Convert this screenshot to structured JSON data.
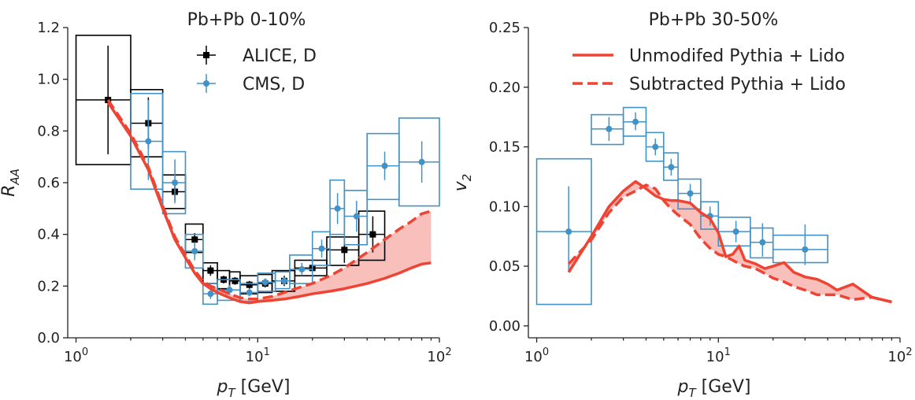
{
  "chart_data": [
    {
      "type": "scatter",
      "title": "Pb+Pb 0-10%",
      "ylabel_main": "R",
      "ylabel_sub": "AA",
      "xlabel_main": "p",
      "xlabel_sub": "T",
      "xlabel_unit": " [GeV]",
      "xscale": "log",
      "xlim": [
        0.9,
        100
      ],
      "ylim": [
        0,
        1.2
      ],
      "yticks": [
        0.0,
        0.2,
        0.4,
        0.6,
        0.8,
        1.0,
        1.2
      ],
      "ytick_labels": [
        "0.0",
        "0.2",
        "0.4",
        "0.6",
        "0.8",
        "1.0",
        "1.2"
      ],
      "xticks": [
        1,
        10,
        100
      ],
      "xtick_base": "10",
      "xtick_exps": [
        "0",
        "1",
        "2"
      ],
      "legend_position": "top-center",
      "series": [
        {
          "name": "ALICE, D",
          "color": "#000000",
          "marker": "square",
          "points": [
            {
              "x": 1.5,
              "y": 0.92,
              "xlo": 1,
              "xhi": 2,
              "ylo": 0.71,
              "yhi": 1.13,
              "blo": 0.67,
              "bhi": 1.17
            },
            {
              "x": 2.5,
              "y": 0.83,
              "xlo": 2,
              "xhi": 3,
              "ylo": 0.73,
              "yhi": 0.93,
              "blo": 0.7,
              "bhi": 0.96
            },
            {
              "x": 3.5,
              "y": 0.565,
              "xlo": 3,
              "xhi": 4,
              "ylo": 0.53,
              "yhi": 0.6,
              "blo": 0.5,
              "bhi": 0.63
            },
            {
              "x": 4.5,
              "y": 0.38,
              "xlo": 4,
              "xhi": 5,
              "ylo": 0.355,
              "yhi": 0.405,
              "blo": 0.33,
              "bhi": 0.44
            },
            {
              "x": 5.5,
              "y": 0.26,
              "xlo": 5,
              "xhi": 6,
              "ylo": 0.24,
              "yhi": 0.28,
              "blo": 0.21,
              "bhi": 0.29
            },
            {
              "x": 6.5,
              "y": 0.225,
              "xlo": 6,
              "xhi": 7,
              "ylo": 0.21,
              "yhi": 0.24,
              "blo": 0.19,
              "bhi": 0.26
            },
            {
              "x": 7.5,
              "y": 0.22,
              "xlo": 7,
              "xhi": 8,
              "ylo": 0.205,
              "yhi": 0.235,
              "blo": 0.185,
              "bhi": 0.255
            },
            {
              "x": 9,
              "y": 0.205,
              "xlo": 8,
              "xhi": 10,
              "ylo": 0.19,
              "yhi": 0.22,
              "blo": 0.17,
              "bhi": 0.24
            },
            {
              "x": 11,
              "y": 0.21,
              "xlo": 10,
              "xhi": 12,
              "ylo": 0.195,
              "yhi": 0.225,
              "blo": 0.175,
              "bhi": 0.245
            },
            {
              "x": 14,
              "y": 0.22,
              "xlo": 12,
              "xhi": 16,
              "ylo": 0.2,
              "yhi": 0.24,
              "blo": 0.18,
              "bhi": 0.26
            },
            {
              "x": 20,
              "y": 0.27,
              "xlo": 16,
              "xhi": 24,
              "ylo": 0.24,
              "yhi": 0.3,
              "blo": 0.24,
              "bhi": 0.3
            },
            {
              "x": 30,
              "y": 0.34,
              "xlo": 24,
              "xhi": 36,
              "ylo": 0.29,
              "yhi": 0.39,
              "blo": 0.28,
              "bhi": 0.39
            },
            {
              "x": 43,
              "y": 0.4,
              "xlo": 36,
              "xhi": 50,
              "ylo": 0.33,
              "yhi": 0.47,
              "blo": 0.3,
              "bhi": 0.49
            }
          ]
        },
        {
          "name": "CMS, D",
          "color": "#4292c6",
          "marker": "circle",
          "points": [
            {
              "x": 2.5,
              "y": 0.76,
              "xlo": 2,
              "xhi": 3,
              "ylo": 0.61,
              "yhi": 0.92,
              "blo": 0.575,
              "bhi": 0.945
            },
            {
              "x": 3.5,
              "y": 0.6,
              "xlo": 3,
              "xhi": 4,
              "ylo": 0.52,
              "yhi": 0.69,
              "blo": 0.48,
              "bhi": 0.72
            },
            {
              "x": 4.5,
              "y": 0.335,
              "xlo": 4,
              "xhi": 5,
              "ylo": 0.3,
              "yhi": 0.37,
              "blo": 0.27,
              "bhi": 0.4
            },
            {
              "x": 5.5,
              "y": 0.17,
              "xlo": 5,
              "xhi": 6,
              "ylo": 0.15,
              "yhi": 0.19,
              "blo": 0.13,
              "bhi": 0.21
            },
            {
              "x": 7,
              "y": 0.185,
              "xlo": 6,
              "xhi": 8,
              "ylo": 0.165,
              "yhi": 0.205,
              "blo": 0.145,
              "bhi": 0.225
            },
            {
              "x": 9,
              "y": 0.175,
              "xlo": 8,
              "xhi": 10,
              "ylo": 0.16,
              "yhi": 0.19,
              "blo": 0.14,
              "bhi": 0.21
            },
            {
              "x": 11,
              "y": 0.215,
              "xlo": 10,
              "xhi": 12.5,
              "ylo": 0.2,
              "yhi": 0.23,
              "blo": 0.18,
              "bhi": 0.25
            },
            {
              "x": 14,
              "y": 0.22,
              "xlo": 12.5,
              "xhi": 15,
              "ylo": 0.205,
              "yhi": 0.235,
              "blo": 0.19,
              "bhi": 0.255
            },
            {
              "x": 17.5,
              "y": 0.265,
              "xlo": 15,
              "xhi": 20,
              "ylo": 0.24,
              "yhi": 0.29,
              "blo": 0.21,
              "bhi": 0.32
            },
            {
              "x": 22.5,
              "y": 0.345,
              "xlo": 20,
              "xhi": 25,
              "ylo": 0.31,
              "yhi": 0.38,
              "blo": 0.28,
              "bhi": 0.41
            },
            {
              "x": 27.5,
              "y": 0.5,
              "xlo": 25,
              "xhi": 30,
              "ylo": 0.44,
              "yhi": 0.56,
              "blo": 0.4,
              "bhi": 0.61
            },
            {
              "x": 35,
              "y": 0.47,
              "xlo": 30,
              "xhi": 40,
              "ylo": 0.41,
              "yhi": 0.53,
              "blo": 0.36,
              "bhi": 0.57
            },
            {
              "x": 50,
              "y": 0.665,
              "xlo": 40,
              "xhi": 60,
              "ylo": 0.61,
              "yhi": 0.72,
              "blo": 0.535,
              "bhi": 0.79
            },
            {
              "x": 80,
              "y": 0.68,
              "xlo": 60,
              "xhi": 100,
              "ylo": 0.6,
              "yhi": 0.76,
              "blo": 0.51,
              "bhi": 0.85
            }
          ]
        }
      ],
      "model": {
        "color": "#ee4433",
        "band_color": "#f9bfbb",
        "unmodified": {
          "x": [
            1.5,
            2,
            2.5,
            3,
            3.5,
            4,
            4.5,
            5,
            5.5,
            6,
            7,
            8,
            9,
            10,
            12,
            14,
            17,
            20,
            25,
            30,
            40,
            50,
            60,
            70,
            80,
            90
          ],
          "y": [
            0.91,
            0.78,
            0.65,
            0.5,
            0.38,
            0.31,
            0.25,
            0.21,
            0.19,
            0.175,
            0.155,
            0.14,
            0.135,
            0.14,
            0.145,
            0.15,
            0.16,
            0.17,
            0.18,
            0.19,
            0.21,
            0.23,
            0.25,
            0.27,
            0.285,
            0.29
          ]
        },
        "subtracted": {
          "x": [
            1.5,
            2,
            2.5,
            3,
            3.5,
            4,
            4.5,
            5,
            5.5,
            6,
            7,
            8,
            9,
            10,
            12,
            14,
            17,
            20,
            25,
            30,
            40,
            50,
            60,
            70,
            80,
            90
          ],
          "y": [
            0.92,
            0.79,
            0.66,
            0.51,
            0.39,
            0.32,
            0.26,
            0.22,
            0.2,
            0.19,
            0.17,
            0.155,
            0.15,
            0.15,
            0.16,
            0.175,
            0.195,
            0.21,
            0.24,
            0.27,
            0.33,
            0.38,
            0.42,
            0.45,
            0.48,
            0.49
          ]
        }
      }
    },
    {
      "type": "scatter",
      "title": "Pb+Pb 30-50%",
      "ylabel_main": "v",
      "ylabel_sub": "2",
      "xlabel_main": "p",
      "xlabel_sub": "T",
      "xlabel_unit": " [GeV]",
      "xscale": "log",
      "xlim": [
        0.9,
        100
      ],
      "ylim": [
        -0.01,
        0.25
      ],
      "yticks": [
        0.0,
        0.05,
        0.1,
        0.15,
        0.2,
        0.25
      ],
      "ytick_labels": [
        "0.00",
        "0.05",
        "0.10",
        "0.15",
        "0.20",
        "0.25"
      ],
      "xticks": [
        1,
        10,
        100
      ],
      "xtick_base": "10",
      "xtick_exps": [
        "0",
        "1",
        "2"
      ],
      "legend_position": "top-right",
      "series": [
        {
          "color": "#4292c6",
          "marker": "circle",
          "points": [
            {
              "x": 1.5,
              "y": 0.079,
              "xlo": 1,
              "xhi": 2,
              "ylo": 0.045,
              "yhi": 0.117,
              "blo": 0.018,
              "bhi": 0.14
            },
            {
              "x": 2.5,
              "y": 0.165,
              "xlo": 2,
              "xhi": 3,
              "ylo": 0.155,
              "yhi": 0.175,
              "blo": 0.152,
              "bhi": 0.177
            },
            {
              "x": 3.5,
              "y": 0.171,
              "xlo": 3,
              "xhi": 4,
              "ylo": 0.164,
              "yhi": 0.179,
              "blo": 0.159,
              "bhi": 0.183
            },
            {
              "x": 4.5,
              "y": 0.15,
              "xlo": 4,
              "xhi": 5,
              "ylo": 0.143,
              "yhi": 0.157,
              "blo": 0.138,
              "bhi": 0.162
            },
            {
              "x": 5.5,
              "y": 0.133,
              "xlo": 5,
              "xhi": 6,
              "ylo": 0.126,
              "yhi": 0.14,
              "blo": 0.122,
              "bhi": 0.145
            },
            {
              "x": 7,
              "y": 0.111,
              "xlo": 6,
              "xhi": 8,
              "ylo": 0.103,
              "yhi": 0.119,
              "blo": 0.098,
              "bhi": 0.123
            },
            {
              "x": 9,
              "y": 0.092,
              "xlo": 8,
              "xhi": 10,
              "ylo": 0.084,
              "yhi": 0.1,
              "blo": 0.081,
              "bhi": 0.104
            },
            {
              "x": 12.5,
              "y": 0.079,
              "xlo": 10,
              "xhi": 15,
              "ylo": 0.07,
              "yhi": 0.088,
              "blo": 0.067,
              "bhi": 0.091
            },
            {
              "x": 17.5,
              "y": 0.07,
              "xlo": 15,
              "xhi": 20,
              "ylo": 0.058,
              "yhi": 0.086,
              "blo": 0.057,
              "bhi": 0.082
            },
            {
              "x": 30,
              "y": 0.064,
              "xlo": 20,
              "xhi": 40,
              "ylo": 0.051,
              "yhi": 0.085,
              "blo": 0.053,
              "bhi": 0.076
            }
          ]
        }
      ],
      "model": {
        "color": "#ee4433",
        "band_color": "#f9bfbb",
        "unmodified_label": "Unmodifed Pythia + Lido",
        "subtracted_label": "Subtracted Pythia + Lido",
        "unmodified": {
          "x": [
            1.5,
            2,
            2.5,
            3,
            3.5,
            4,
            4.5,
            5,
            5.5,
            6,
            7,
            8,
            9,
            10,
            11,
            12,
            13,
            14,
            16,
            18,
            20,
            23,
            26,
            30,
            35,
            40,
            45,
            55,
            70,
            90
          ],
          "y": [
            0.045,
            0.075,
            0.1,
            0.113,
            0.121,
            0.115,
            0.109,
            0.106,
            0.105,
            0.105,
            0.103,
            0.095,
            0.09,
            0.078,
            0.058,
            0.06,
            0.067,
            0.055,
            0.052,
            0.048,
            0.05,
            0.053,
            0.045,
            0.041,
            0.039,
            0.035,
            0.03,
            0.035,
            0.024,
            0.02
          ]
        },
        "subtracted": {
          "x": [
            1.5,
            2,
            2.5,
            3,
            3.5,
            4,
            4.5,
            5,
            5.5,
            6,
            7,
            8,
            9,
            10,
            11,
            12,
            13,
            14,
            16,
            18,
            20,
            23,
            26,
            30,
            35,
            40,
            45,
            55,
            70,
            90
          ],
          "y": [
            0.052,
            0.072,
            0.095,
            0.108,
            0.113,
            0.118,
            0.115,
            0.105,
            0.098,
            0.093,
            0.085,
            0.073,
            0.065,
            0.06,
            0.058,
            0.055,
            0.052,
            0.05,
            0.048,
            0.044,
            0.04,
            0.037,
            0.033,
            0.03,
            0.026,
            0.026,
            0.026,
            0.022,
            0.024,
            0.02
          ]
        }
      }
    }
  ]
}
